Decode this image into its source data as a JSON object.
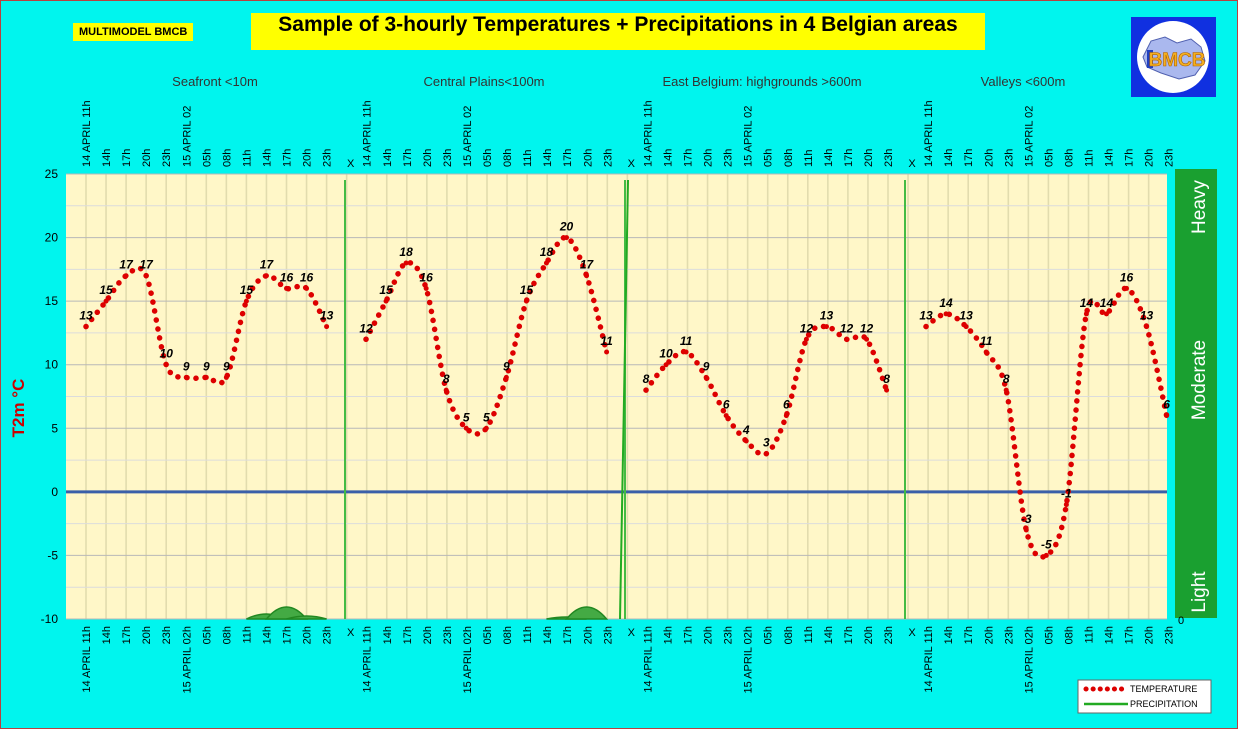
{
  "brand": "MULTIMODEL BMCB",
  "title": "Sample of 3-hourly Temperatures + Precipitations in 4 Belgian areas",
  "logo_text": "BMCB",
  "chart_data": {
    "type": "line",
    "ylabel": "T2m °C",
    "ylim": [
      -10,
      25
    ],
    "yticks": [
      -10,
      -5,
      0,
      5,
      10,
      15,
      20,
      25
    ],
    "right_axis": {
      "labels": [
        "Light",
        "Moderate",
        "Heavy"
      ],
      "min_label": "0",
      "color": "#1aa030"
    },
    "grid": true,
    "legend_position": "bottom-right",
    "colors": {
      "temperature": "#dd0000",
      "precipitation": "#22aa22",
      "zero_line": "#3a5fa8",
      "plot_bg": "#fff7c8",
      "separator": "#44bb44"
    },
    "legend": [
      "TEMPERATURE",
      "PRECIPITATION"
    ],
    "regions": [
      {
        "name": "Seafront <10m",
        "values": [
          13,
          15,
          17,
          17,
          10,
          9,
          9,
          9,
          15,
          17,
          16,
          16,
          13
        ],
        "labels": [
          "13",
          "15",
          "17",
          "17",
          "10",
          "9",
          "9",
          "9",
          "15",
          "17",
          "16",
          "16",
          "13"
        ],
        "precip": [
          0,
          0,
          0,
          0,
          0,
          0,
          0,
          0,
          0,
          0.05,
          0.12,
          0.03,
          0
        ]
      },
      {
        "name": "Central Plains<100m",
        "values": [
          12,
          15,
          18,
          16,
          8,
          5,
          5,
          9,
          15,
          18,
          20,
          17,
          11
        ],
        "labels": [
          "12",
          "15",
          "18",
          "16",
          "8",
          "5",
          "5",
          "9",
          "15",
          "18",
          "20",
          "17",
          "11"
        ],
        "precip": [
          0,
          0,
          0,
          0,
          0,
          0,
          0,
          0,
          0,
          0,
          0.02,
          0.12,
          0
        ]
      },
      {
        "name": "East Belgium:     highgrounds >600m",
        "values": [
          8,
          10,
          11,
          9,
          6,
          4,
          3,
          6,
          12,
          13,
          12,
          12,
          8
        ],
        "labels": [
          "8",
          "10",
          "11",
          "9",
          "6",
          "4",
          "3",
          "6",
          "12",
          "13",
          "12",
          "12",
          "8"
        ],
        "precip": [
          0,
          0,
          0,
          0,
          0,
          0,
          0,
          0,
          0,
          0,
          0,
          0,
          0
        ]
      },
      {
        "name": "Valleys <600m",
        "values": [
          13,
          14,
          13,
          11,
          8,
          -3,
          -5,
          -1,
          14,
          14,
          16,
          13,
          6
        ],
        "labels": [
          "13",
          "14",
          "13",
          "11",
          "8",
          "-3",
          "-5",
          "-1",
          "14",
          "14",
          "16",
          "13",
          "6"
        ],
        "precip": [
          0,
          0,
          0,
          0,
          0,
          0,
          0,
          0,
          0,
          0,
          0,
          0,
          0
        ]
      }
    ],
    "time_labels": [
      "14 APRIL 11h",
      "14h",
      "17h",
      "20h",
      "23h",
      "15 APRIL 02h",
      "05h",
      "08h",
      "11h",
      "14h",
      "17h",
      "20h",
      "23h",
      "X"
    ],
    "top_time_labels": [
      "14 APRIL 11h",
      "14h",
      "17h",
      "20h",
      "23h",
      "15 APRIL 02",
      "05h",
      "08h",
      "11h",
      "14h",
      "17h",
      "20h",
      "23h",
      "X"
    ]
  }
}
